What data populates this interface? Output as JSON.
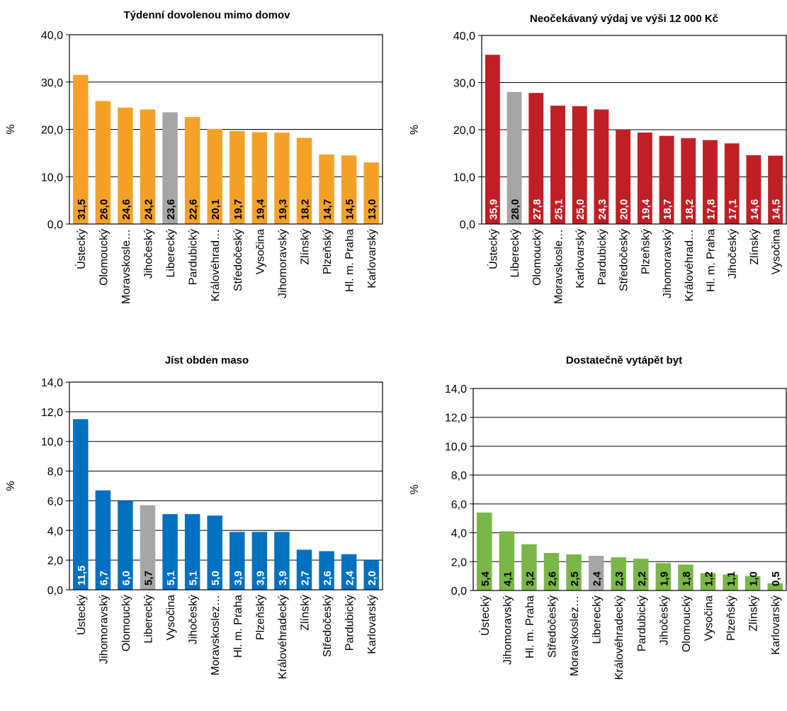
{
  "chart_data": [
    {
      "type": "bar",
      "title": "Týdenní dovolenou mimo domov",
      "ylabel": "%",
      "ylim": [
        0,
        40
      ],
      "yticks": [
        "0,0",
        "10,0",
        "20,0",
        "30,0",
        "40,0"
      ],
      "grid": true,
      "color": "#F5A128",
      "highlight_color": "#A6A6A6",
      "highlight": "Liberecký",
      "categories": [
        "Ústecký",
        "Olomoucký",
        "Moravskosle…",
        "Jihočeský",
        "Liberecký",
        "Pardubický",
        "Královéhrad…",
        "Středočeský",
        "Vysočina",
        "Jihomoravský",
        "Zlínský",
        "Plzeňský",
        "Hl. m. Praha",
        "Karlovarský"
      ],
      "values": [
        31.5,
        26.0,
        24.6,
        24.2,
        23.6,
        22.6,
        20.1,
        19.7,
        19.4,
        19.3,
        18.2,
        14.7,
        14.5,
        13.0
      ],
      "data_labels": [
        "31,5",
        "26,0",
        "24,6",
        "24,2",
        "23,6",
        "22,6",
        "20,1",
        "19,7",
        "19,4",
        "19,3",
        "18,2",
        "14,7",
        "14,5",
        "13,0"
      ],
      "label_colors": [
        "#000000",
        "#000000",
        "#000000",
        "#000000",
        "#000000",
        "#000000",
        "#000000",
        "#000000",
        "#000000",
        "#000000",
        "#000000",
        "#000000",
        "#000000",
        "#000000"
      ]
    },
    {
      "type": "bar",
      "title": "Neočekávaný výdaj ve výši 12 000 Kč",
      "ylabel": "%",
      "ylim": [
        0,
        40
      ],
      "yticks": [
        "0,0",
        "10,0",
        "20,0",
        "30,0",
        "40,0"
      ],
      "grid": true,
      "color": "#C01F26",
      "highlight_color": "#A6A6A6",
      "highlight": "Liberecký",
      "categories": [
        "Ústecký",
        "Liberecký",
        "Olomoucký",
        "Moravskosle…",
        "Karlovarský",
        "Pardubický",
        "Středočeský",
        "Plzeňský",
        "Jihomoravský",
        "Královéhrad…",
        "Hl. m. Praha",
        "Jihočeský",
        "Zlínský",
        "Vysočina"
      ],
      "values": [
        35.9,
        28.0,
        27.8,
        25.1,
        25.0,
        24.3,
        20.0,
        19.4,
        18.7,
        18.2,
        17.8,
        17.1,
        14.6,
        14.5
      ],
      "data_labels": [
        "35,9",
        "28,0",
        "27,8",
        "25,1",
        "25,0",
        "24,3",
        "20,0",
        "19,4",
        "18,7",
        "18,2",
        "17,8",
        "17,1",
        "14,6",
        "14,5"
      ],
      "label_colors": [
        "#FFFFFF",
        "#000000",
        "#FFFFFF",
        "#FFFFFF",
        "#FFFFFF",
        "#FFFFFF",
        "#FFFFFF",
        "#FFFFFF",
        "#FFFFFF",
        "#FFFFFF",
        "#FFFFFF",
        "#FFFFFF",
        "#FFFFFF",
        "#FFFFFF"
      ]
    },
    {
      "type": "bar",
      "title": "Jíst obden maso",
      "ylabel": "%",
      "ylim": [
        0,
        14
      ],
      "yticks": [
        "0,0",
        "2,0",
        "4,0",
        "6,0",
        "8,0",
        "10,0",
        "12,0",
        "14,0"
      ],
      "grid": true,
      "color": "#0070C0",
      "highlight_color": "#A6A6A6",
      "highlight": "Liberecký",
      "categories": [
        "Ústecký",
        "Jihomoravský",
        "Olomoucký",
        "Liberecký",
        "Vysočina",
        "Jihočeský",
        "Moravskoslez…",
        "Hl. m. Praha",
        "Plzeňský",
        "Královéhradecký",
        "Zlínský",
        "Středočeský",
        "Pardubický",
        "Karlovarský"
      ],
      "values": [
        11.5,
        6.7,
        6.0,
        5.7,
        5.1,
        5.1,
        5.0,
        3.9,
        3.9,
        3.9,
        2.7,
        2.6,
        2.4,
        2.0
      ],
      "data_labels": [
        "11,5",
        "6,7",
        "6,0",
        "5,7",
        "5,1",
        "5,1",
        "5,0",
        "3,9",
        "3,9",
        "3,9",
        "2,7",
        "2,6",
        "2,4",
        "2,0"
      ],
      "label_colors": [
        "#FFFFFF",
        "#FFFFFF",
        "#FFFFFF",
        "#000000",
        "#FFFFFF",
        "#FFFFFF",
        "#FFFFFF",
        "#FFFFFF",
        "#FFFFFF",
        "#FFFFFF",
        "#FFFFFF",
        "#FFFFFF",
        "#FFFFFF",
        "#FFFFFF"
      ]
    },
    {
      "type": "bar",
      "title": "Dostatečně vytápět byt",
      "ylabel": "%",
      "ylim": [
        0,
        14
      ],
      "yticks": [
        "0,0",
        "2,0",
        "4,0",
        "6,0",
        "8,0",
        "10,0",
        "12,0",
        "14,0"
      ],
      "grid": true,
      "color": "#7AB648",
      "highlight_color": "#A6A6A6",
      "highlight": "Liberecký",
      "categories": [
        "Ústecký",
        "Jihomoravský",
        "Hl. m. Praha",
        "Středočeský",
        "Moravskoslez…",
        "Liberecký",
        "Královéhradecký",
        "Pardubický",
        "Jihočeský",
        "Olomoucký",
        "Vysočina",
        "Plzeňský",
        "Zlínský",
        "Karlovarský"
      ],
      "values": [
        5.4,
        4.1,
        3.2,
        2.6,
        2.5,
        2.4,
        2.3,
        2.2,
        1.9,
        1.8,
        1.2,
        1.1,
        1.0,
        0.5
      ],
      "data_labels": [
        "5,4",
        "4,1",
        "3,2",
        "2,6",
        "2,5",
        "2,4",
        "2,3",
        "2,2",
        "1,9",
        "1,8",
        "1,2",
        "1,1",
        "1,0",
        "0,5"
      ],
      "label_colors": [
        "#000000",
        "#000000",
        "#000000",
        "#000000",
        "#000000",
        "#000000",
        "#000000",
        "#000000",
        "#000000",
        "#000000",
        "#000000",
        "#000000",
        "#000000",
        "#000000"
      ]
    }
  ]
}
